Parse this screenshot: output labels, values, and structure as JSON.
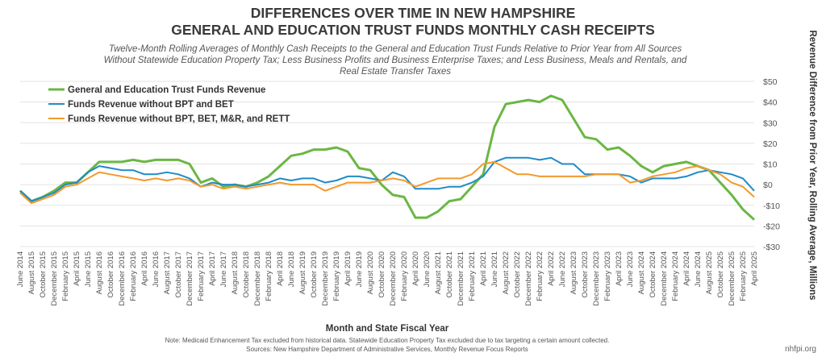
{
  "chart_data": {
    "type": "line",
    "title": "DIFFERENCES OVER TIME IN NEW HAMPSHIRE",
    "title_line2": "GENERAL AND EDUCATION TRUST FUNDS MONTHLY CASH RECEIPTS",
    "subtitle": [
      "Twelve-Month Rolling Averages of Monthly Cash Receipts to the General and Education Trust Funds Relative to Prior Year from All Sources",
      "Without Statewide Education Property Tax; Less Business Profits and Business Enterprise Taxes; and Less Business, Meals and Rentals, and",
      "Real Estate Transfer Taxes"
    ],
    "x_label": "Month and State Fiscal Year",
    "y_label": "Revenue Difference from Prior Year, Rolling Average, Millions",
    "notes": [
      "Note: Medicaid Enhancement Tax excluded from historical data. Statewide Education Property Tax excluded due to tax targeting a certain amount collected.",
      "Sources: New Hampshire Department of Administrative Services, Monthly Revenue Focus Reports"
    ],
    "source_mark": "nhfpi.org",
    "categories": [
      "June 2014",
      "August 2015",
      "October 2015",
      "December 2015",
      "February 2015",
      "April 2015",
      "June 2015",
      "August 2016",
      "October 2016",
      "December 2016",
      "February 2016",
      "April 2016",
      "June 2016",
      "August 2017",
      "October 2017",
      "December 2017",
      "February 2017",
      "April 2017",
      "June 2017",
      "August 2018",
      "October 2018",
      "December 2018",
      "February 2018",
      "April 2018",
      "June 2018",
      "August 2019",
      "October 2019",
      "December 2019",
      "February 2019",
      "April 2019",
      "June 2019",
      "August 2020",
      "October 2020",
      "December 2020",
      "February 2020",
      "April 2020",
      "June 2020",
      "August 2021",
      "October 2021",
      "December 2021",
      "February 2021",
      "April 2021",
      "June 2021",
      "August 2022",
      "October 2022",
      "December 2022",
      "February 2022",
      "April 2022",
      "June 2022",
      "August 2023",
      "October 2023",
      "December 2023",
      "February 2023",
      "April 2023",
      "June 2023",
      "August 2024",
      "October 2024",
      "December 2024",
      "February 2024",
      "April 2024",
      "June 2024",
      "August 2025",
      "October 2025",
      "December 2025",
      "February 2025",
      "April 2025"
    ],
    "series": [
      {
        "name": "General and Education Trust Funds Revenue",
        "color": "#6ab744",
        "values": [
          -3,
          -8,
          -6,
          -3,
          1,
          1,
          6,
          11,
          11,
          11,
          12,
          11,
          12,
          12,
          12,
          10,
          1,
          3,
          -1,
          0,
          -1,
          1,
          4,
          9,
          14,
          15,
          17,
          17,
          18,
          16,
          8,
          7,
          0,
          -5,
          -6,
          -16,
          -16,
          -13,
          -8,
          -7,
          -1,
          5,
          28,
          39,
          40,
          41,
          40,
          43,
          41,
          32,
          23,
          22,
          17,
          18,
          14,
          9,
          6,
          9,
          10,
          11,
          9,
          7,
          1,
          -5,
          -12,
          -17
        ]
      },
      {
        "name": "Funds Revenue without BPT and BET",
        "color": "#1f8bc6",
        "values": [
          -3,
          -8,
          -6,
          -4,
          0,
          1,
          6,
          9,
          8,
          7,
          7,
          5,
          5,
          6,
          5,
          3,
          -1,
          1,
          0,
          0,
          -1,
          0,
          1,
          3,
          2,
          3,
          3,
          1,
          2,
          4,
          4,
          3,
          2,
          6,
          4,
          -2,
          -2,
          -2,
          -1,
          -1,
          1,
          4,
          11,
          13,
          13,
          13,
          12,
          13,
          10,
          10,
          5,
          5,
          5,
          5,
          4,
          1,
          3,
          3,
          3,
          4,
          6,
          7,
          6,
          5,
          3,
          -3
        ]
      },
      {
        "name": "Funds Revenue without BPT, BET, M&R, and RETT",
        "color": "#f39a2b",
        "values": [
          -4,
          -9,
          -7,
          -5,
          -1,
          0,
          3,
          6,
          5,
          4,
          3,
          2,
          3,
          2,
          3,
          2,
          -1,
          0,
          -2,
          -1,
          -2,
          -1,
          0,
          1,
          0,
          0,
          0,
          -3,
          -1,
          1,
          1,
          1,
          2,
          3,
          2,
          -1,
          1,
          3,
          3,
          3,
          5,
          10,
          11,
          8,
          5,
          5,
          4,
          4,
          4,
          4,
          4,
          5,
          5,
          5,
          1,
          2,
          4,
          5,
          6,
          8,
          9,
          7,
          5,
          1,
          -1,
          -6
        ]
      }
    ],
    "ylim": [
      -30,
      50
    ],
    "yticks": [
      {
        "value": 50,
        "label": "$50"
      },
      {
        "value": 40,
        "label": "$40"
      },
      {
        "value": 30,
        "label": "$30"
      },
      {
        "value": 20,
        "label": "$20"
      },
      {
        "value": 10,
        "label": "$10"
      },
      {
        "value": 0,
        "label": "$0"
      },
      {
        "value": -10,
        "label": "-$10"
      },
      {
        "value": -20,
        "label": "-$20"
      },
      {
        "value": -30,
        "label": "-$30"
      }
    ],
    "grid": true,
    "legend": "top-left"
  }
}
